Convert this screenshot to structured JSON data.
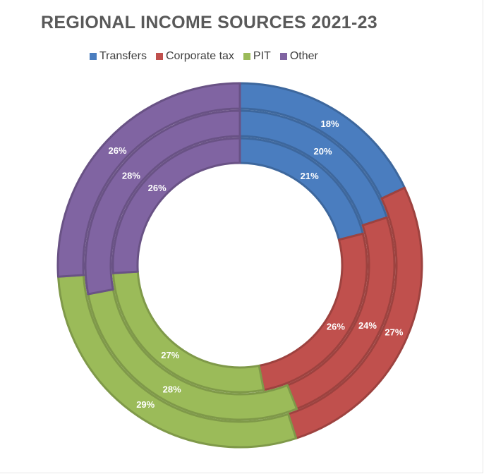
{
  "chart_data": {
    "type": "doughnut",
    "title": "REGIONAL INCOME SOURCES 2021-23",
    "legend_position": "top",
    "series": [
      {
        "name": "Transfers",
        "color": "#4A7DBF",
        "values": [
          18,
          20,
          21
        ],
        "labels": [
          "18%",
          "20%",
          "21%"
        ]
      },
      {
        "name": "Corporate tax",
        "color": "#C0504D",
        "values": [
          27,
          24,
          26
        ],
        "labels": [
          "27%",
          "24%",
          "26%"
        ]
      },
      {
        "name": "PIT",
        "color": "#9BBB59",
        "values": [
          29,
          28,
          27
        ],
        "labels": [
          "29%",
          "28%",
          "27%"
        ]
      },
      {
        "name": "Other",
        "color": "#8064A2",
        "values": [
          26,
          28,
          26
        ],
        "labels": [
          "26%",
          "28%",
          "26%"
        ]
      }
    ]
  }
}
